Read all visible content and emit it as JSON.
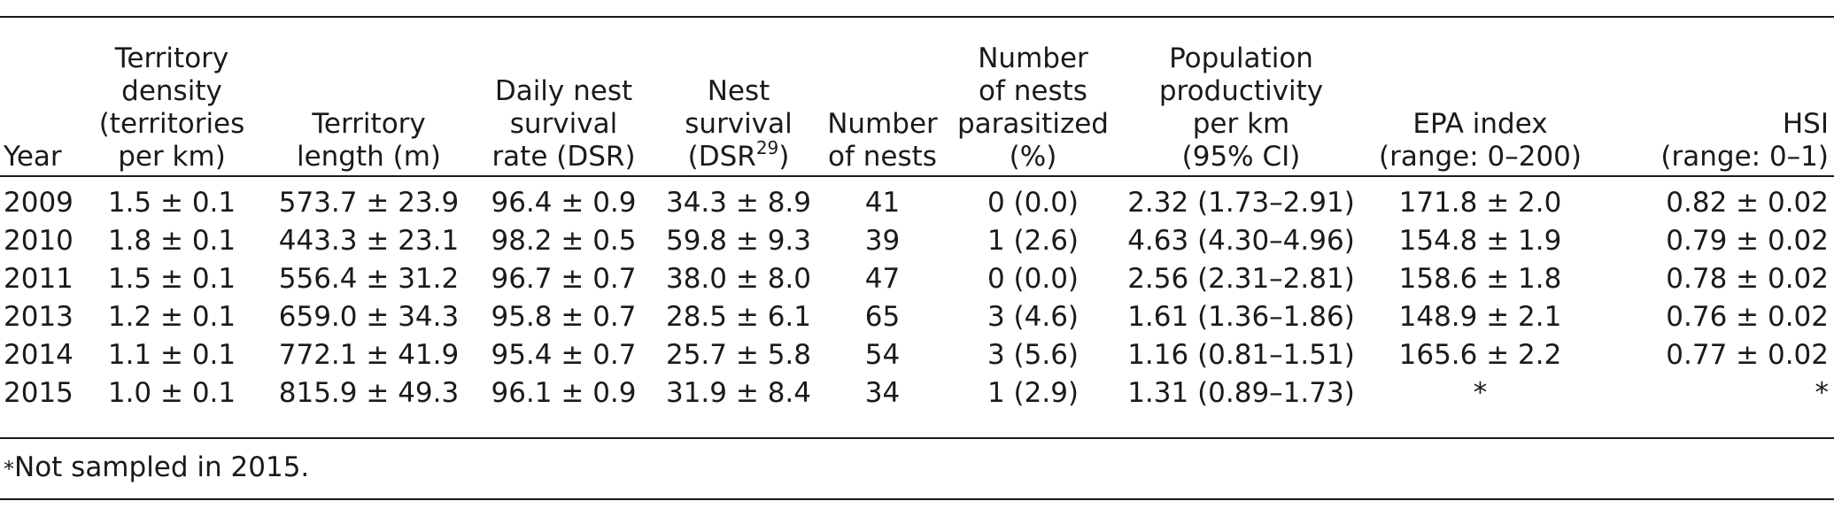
{
  "table": {
    "headers": {
      "year": [
        "Year"
      ],
      "density": [
        "Territory",
        "density",
        "(territories",
        "per km)"
      ],
      "length": [
        "Territory",
        "length (m)"
      ],
      "dsr": [
        "Daily nest",
        "survival",
        "rate (DSR)"
      ],
      "nest_survival": [
        "Nest",
        "survival",
        "(DSR",
        "29",
        ")"
      ],
      "nests": [
        "Number",
        "of nests"
      ],
      "parasitized": [
        "Number",
        "of nests",
        "parasitized",
        "(%)"
      ],
      "productivity": [
        "Population",
        "productivity",
        "per km",
        "(95% CI)"
      ],
      "epa": [
        "EPA index",
        "(range: 0–200)"
      ],
      "hsi": [
        "HSI",
        "(range: 0–1)"
      ]
    },
    "rows": [
      [
        "2009",
        "1.5 ± 0.1",
        "573.7 ± 23.9",
        "96.4 ± 0.9",
        "34.3 ± 8.9",
        "41",
        "0 (0.0)",
        "2.32 (1.73–2.91)",
        "171.8 ± 2.0",
        "0.82 ± 0.02"
      ],
      [
        "2010",
        "1.8 ± 0.1",
        "443.3 ± 23.1",
        "98.2 ± 0.5",
        "59.8 ± 9.3",
        "39",
        "1 (2.6)",
        "4.63 (4.30–4.96)",
        "154.8 ± 1.9",
        "0.79 ± 0.02"
      ],
      [
        "2011",
        "1.5 ± 0.1",
        "556.4 ± 31.2",
        "96.7 ± 0.7",
        "38.0 ± 8.0",
        "47",
        "0 (0.0)",
        "2.56 (2.31–2.81)",
        "158.6 ± 1.8",
        "0.78 ± 0.02"
      ],
      [
        "2013",
        "1.2 ± 0.1",
        "659.0 ± 34.3",
        "95.8 ± 0.7",
        "28.5 ± 6.1",
        "65",
        "3 (4.6)",
        "1.61 (1.36–1.86)",
        "148.9 ± 2.1",
        "0.76 ± 0.02"
      ],
      [
        "2014",
        "1.1 ± 0.1",
        "772.1 ± 41.9",
        "95.4 ± 0.7",
        "25.7 ± 5.8",
        "54",
        "3 (5.6)",
        "1.16 (0.81–1.51)",
        "165.6 ± 2.2",
        "0.77 ± 0.02"
      ],
      [
        "2015",
        "1.0 ± 0.1",
        "815.9 ± 49.3",
        "96.1 ± 0.9",
        "31.9 ± 8.4",
        "34",
        "1 (2.9)",
        "1.31 (0.89–1.73)",
        "*",
        "*"
      ]
    ]
  },
  "footnote": {
    "mark": "*",
    "text": "Not sampled in 2015."
  }
}
